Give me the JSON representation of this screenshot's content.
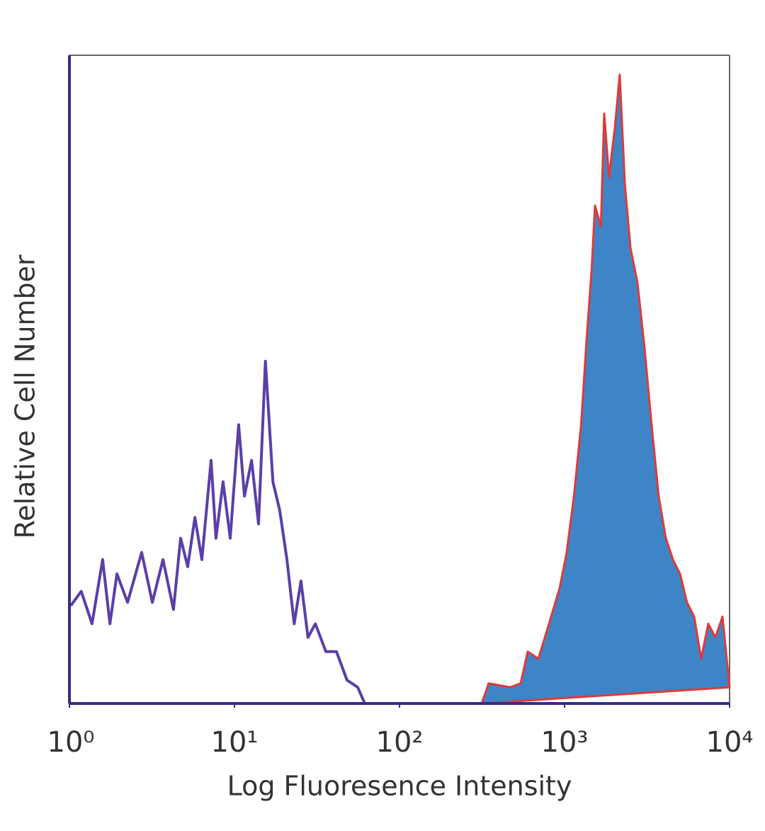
{
  "chart_data": {
    "type": "histogram-overlay",
    "x_label": "Log Fluoresence Intensity",
    "y_label": "Relative Cell Number",
    "xscale": "log",
    "xlim": [
      1,
      10000
    ],
    "xticks": [
      {
        "value": 1,
        "label": "10⁰"
      },
      {
        "value": 10,
        "label": "10¹"
      },
      {
        "value": 100,
        "label": "10²"
      },
      {
        "value": 1000,
        "label": "10³"
      },
      {
        "value": 10000,
        "label": "10⁴"
      }
    ],
    "ylim": [
      0,
      100
    ],
    "series": [
      {
        "color": "#5b3fa8",
        "fill": false,
        "x": [
          1.02,
          1.18,
          1.37,
          1.59,
          1.76,
          1.94,
          2.25,
          2.74,
          3.18,
          3.69,
          4.27,
          4.72,
          5.21,
          5.76,
          6.35,
          7.22,
          7.73,
          8.53,
          9.42,
          10.6,
          11.5,
          12.7,
          14.0,
          15.4,
          17.1,
          18.8,
          20.8,
          23.0,
          25.3,
          27.9,
          30.9,
          35.8,
          41.5,
          48.1,
          55.8,
          61.6,
          143,
          384,
          10000
        ],
        "values": [
          15.1,
          17.3,
          12.3,
          22.2,
          12.3,
          20.0,
          15.6,
          23.3,
          15.6,
          22.2,
          14.5,
          25.5,
          21.1,
          28.7,
          22.2,
          37.5,
          25.5,
          34.2,
          25.5,
          43.0,
          32.0,
          37.5,
          27.7,
          52.8,
          34.2,
          29.8,
          22.2,
          12.3,
          18.9,
          10.2,
          12.3,
          8.0,
          8.0,
          3.6,
          2.5,
          0,
          0,
          0,
          0
        ]
      },
      {
        "color": "#3d85c6",
        "line_color": "#e03a3a",
        "fill": true,
        "x": [
          315,
          347,
          468,
          542,
          598,
          694,
          805,
          934,
          1030,
          1140,
          1260,
          1360,
          1460,
          1530,
          1660,
          1740,
          1860,
          2020,
          2160,
          2320,
          2510,
          2770,
          3050,
          3370,
          3720,
          4110,
          4540,
          5010,
          5520,
          6100,
          6730,
          7430,
          8210,
          9060,
          10000
        ],
        "values": [
          0,
          3.1,
          2.5,
          3.1,
          8.0,
          6.9,
          12.3,
          17.8,
          23.3,
          32.0,
          43.0,
          56.1,
          67.0,
          76.8,
          73.6,
          91.0,
          81.2,
          88.9,
          97.0,
          80.1,
          70.3,
          64.8,
          55.0,
          43.0,
          32.0,
          25.5,
          22.2,
          20.0,
          15.6,
          13.4,
          6.9,
          12.3,
          10.2,
          13.4,
          2.5
        ]
      }
    ]
  }
}
